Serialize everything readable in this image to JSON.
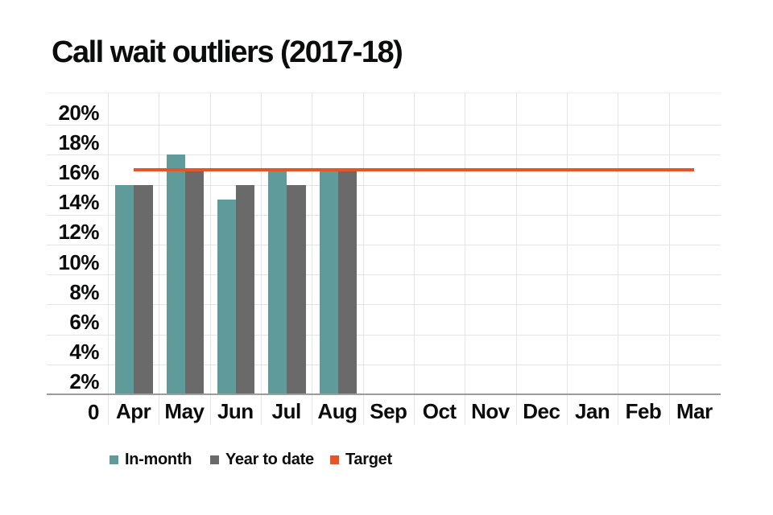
{
  "title": "Call wait outliers (2017-18)",
  "chart_data": {
    "type": "bar",
    "title": "Call wait outliers (2017-18)",
    "categories": [
      "Apr",
      "May",
      "Jun",
      "Jul",
      "Aug",
      "Sep",
      "Oct",
      "Nov",
      "Dec",
      "Jan",
      "Feb",
      "Mar"
    ],
    "series": [
      {
        "name": "In-month",
        "type": "bar",
        "color": "#5f9b9a",
        "values": [
          15,
          17,
          14,
          16,
          16,
          null,
          null,
          null,
          null,
          null,
          null,
          null
        ]
      },
      {
        "name": "Year to date",
        "type": "bar",
        "color": "#6a6a6a",
        "values": [
          15,
          16,
          15,
          15,
          16,
          null,
          null,
          null,
          null,
          null,
          null,
          null
        ]
      },
      {
        "name": "Target",
        "type": "line",
        "color": "#e2562c",
        "values": [
          16,
          16,
          16,
          16,
          16,
          16,
          16,
          16,
          16,
          16,
          16,
          16
        ]
      }
    ],
    "unit": "%",
    "y_axis": {
      "min": 0,
      "max": 20,
      "step": 2,
      "tick_labels": [
        "20%",
        "18%",
        "16%",
        "14%",
        "12%",
        "10%",
        "8%",
        "6%",
        "4%",
        "2%"
      ],
      "origin_label": "0"
    },
    "grid": true,
    "legend_position": "bottom",
    "target_value": 16
  },
  "legend": {
    "items": [
      {
        "label": "In-month",
        "color": "#5f9b9a"
      },
      {
        "label": "Year to date",
        "color": "#6a6a6a"
      },
      {
        "label": "Target",
        "color": "#e2562c"
      }
    ]
  }
}
